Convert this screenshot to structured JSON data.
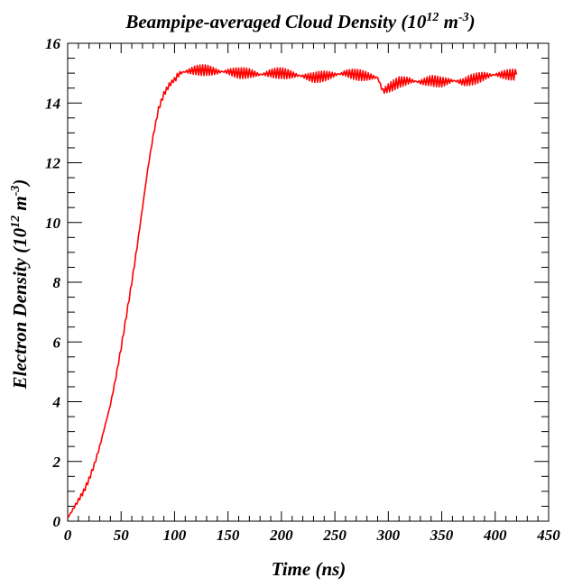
{
  "chart_data": {
    "type": "line",
    "title": "Beampipe-averaged Cloud Density (10^12 m^-3)",
    "title_parts": {
      "prefix": "Beampipe-averaged Cloud Density (10",
      "exp1": "12",
      "mid": " m",
      "exp2": "-3",
      "suffix": ")"
    },
    "xlabel": "Time (ns)",
    "ylabel": "Electron Density (10^12 m^-3)",
    "ylabel_parts": {
      "prefix": "Electron Density (10",
      "exp1": "12",
      "mid": " m",
      "exp2": "-3",
      "suffix": ")"
    },
    "xlim": [
      0,
      450
    ],
    "ylim": [
      0,
      16
    ],
    "x_ticks": [
      0,
      50,
      100,
      150,
      200,
      250,
      300,
      350,
      400,
      450
    ],
    "y_ticks": [
      0,
      2,
      4,
      6,
      8,
      10,
      12,
      14,
      16
    ],
    "grid": false,
    "line_color": "#ff0000",
    "series": [
      {
        "x": [
          0,
          5,
          10,
          15,
          20,
          25,
          30,
          35,
          40,
          45,
          50,
          55,
          60,
          65,
          70,
          75,
          80,
          85,
          90,
          95,
          100,
          105,
          110,
          120,
          130,
          140,
          150,
          160,
          170,
          180,
          190,
          200,
          210,
          220,
          230,
          240,
          250,
          260,
          270,
          280,
          290,
          295,
          300,
          310,
          320,
          330,
          340,
          350,
          360,
          370,
          380,
          390,
          400,
          410,
          420
        ],
        "values": [
          0.1,
          0.4,
          0.7,
          1.0,
          1.4,
          1.9,
          2.5,
          3.2,
          3.9,
          4.8,
          5.8,
          6.9,
          8.0,
          9.2,
          10.5,
          11.8,
          12.9,
          13.8,
          14.3,
          14.6,
          14.8,
          15.0,
          15.05,
          15.1,
          15.1,
          15.05,
          15.05,
          15.0,
          15.0,
          14.95,
          15.0,
          15.0,
          14.95,
          14.9,
          14.85,
          14.9,
          14.95,
          15.0,
          14.95,
          14.9,
          14.85,
          14.4,
          14.5,
          14.7,
          14.75,
          14.7,
          14.75,
          14.7,
          14.75,
          14.7,
          14.8,
          14.9,
          14.95,
          14.95,
          14.95
        ]
      }
    ]
  }
}
